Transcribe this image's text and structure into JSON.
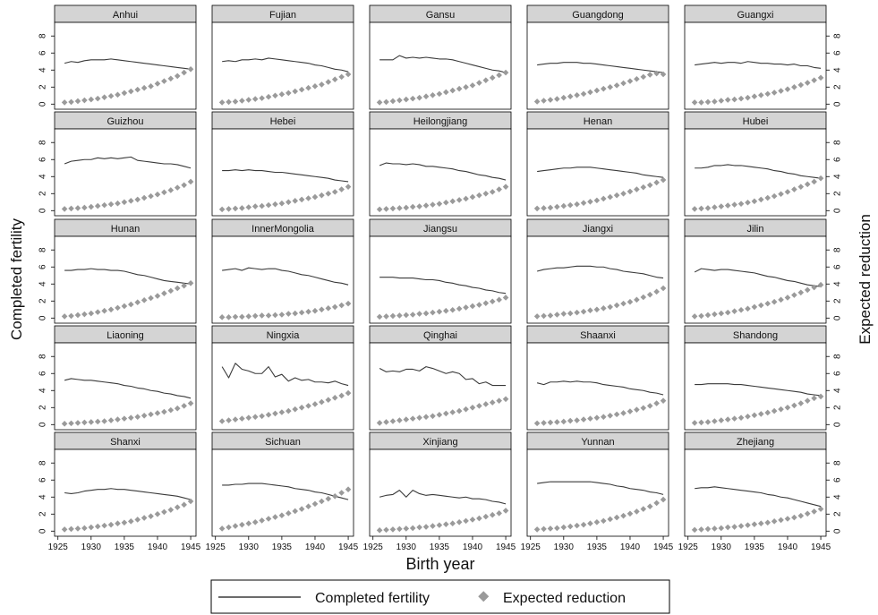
{
  "figure": {
    "xlabel": "Birth year",
    "ylabel_left": "Completed fertility",
    "ylabel_right": "Expected reduction",
    "legend": {
      "completed": "Completed fertility",
      "expected": "Expected reduction"
    },
    "colors": {
      "completed": "#3a3a3a",
      "expected": "#9a9a9a",
      "header_bg": "#d4d4d4",
      "frame": "#000000"
    }
  },
  "chart_data": {
    "type": "line",
    "x": [
      1926,
      1927,
      1928,
      1929,
      1930,
      1931,
      1932,
      1933,
      1934,
      1935,
      1936,
      1937,
      1938,
      1939,
      1940,
      1941,
      1942,
      1943,
      1944,
      1945
    ],
    "xticks": [
      1925,
      1930,
      1935,
      1940,
      1945
    ],
    "xlim": [
      1924.5,
      1945.8
    ],
    "yticks": [
      0,
      2,
      4,
      6,
      8
    ],
    "ylim": [
      -0.6,
      9.6
    ],
    "xlabel": "Birth year",
    "ylabel_left": "Completed fertility",
    "ylabel_right": "Expected reduction",
    "grid": false,
    "legend_position": "bottom",
    "series_names": [
      "Completed fertility",
      "Expected reduction"
    ],
    "panels": [
      {
        "name": "Anhui",
        "completed": [
          4.8,
          5.0,
          4.9,
          5.1,
          5.2,
          5.2,
          5.2,
          5.3,
          5.2,
          5.1,
          5.0,
          4.9,
          4.8,
          4.7,
          4.6,
          4.5,
          4.4,
          4.3,
          4.2,
          4.1
        ],
        "expected": [
          0.2,
          0.25,
          0.35,
          0.45,
          0.55,
          0.65,
          0.8,
          0.95,
          1.1,
          1.3,
          1.5,
          1.7,
          1.9,
          2.1,
          2.4,
          2.7,
          3.0,
          3.3,
          3.7,
          4.1
        ]
      },
      {
        "name": "Fujian",
        "completed": [
          5.0,
          5.1,
          5.0,
          5.2,
          5.2,
          5.3,
          5.2,
          5.4,
          5.3,
          5.2,
          5.1,
          5.0,
          4.9,
          4.8,
          4.6,
          4.5,
          4.3,
          4.1,
          4.0,
          3.8
        ],
        "expected": [
          0.2,
          0.25,
          0.3,
          0.4,
          0.5,
          0.6,
          0.7,
          0.85,
          1.0,
          1.15,
          1.3,
          1.5,
          1.7,
          1.9,
          2.1,
          2.3,
          2.6,
          2.9,
          3.2,
          3.5
        ]
      },
      {
        "name": "Gansu",
        "completed": [
          5.2,
          5.2,
          5.2,
          5.7,
          5.4,
          5.5,
          5.4,
          5.5,
          5.4,
          5.3,
          5.3,
          5.2,
          5.0,
          4.8,
          4.6,
          4.4,
          4.2,
          4.0,
          3.9,
          3.7
        ],
        "expected": [
          0.2,
          0.25,
          0.35,
          0.45,
          0.55,
          0.65,
          0.75,
          0.9,
          1.05,
          1.2,
          1.4,
          1.6,
          1.8,
          2.0,
          2.2,
          2.5,
          2.8,
          3.1,
          3.4,
          3.7
        ]
      },
      {
        "name": "Guangdong",
        "completed": [
          4.6,
          4.7,
          4.8,
          4.8,
          4.9,
          4.9,
          4.9,
          4.8,
          4.8,
          4.7,
          4.6,
          4.5,
          4.4,
          4.3,
          4.2,
          4.1,
          4.0,
          3.9,
          3.8,
          3.7
        ],
        "expected": [
          0.3,
          0.4,
          0.5,
          0.6,
          0.75,
          0.9,
          1.05,
          1.2,
          1.4,
          1.6,
          1.8,
          2.0,
          2.2,
          2.45,
          2.7,
          2.95,
          3.2,
          3.45,
          3.6,
          3.5
        ]
      },
      {
        "name": "Guangxi",
        "completed": [
          4.6,
          4.7,
          4.8,
          4.9,
          4.8,
          4.9,
          4.9,
          4.8,
          5.0,
          4.9,
          4.8,
          4.8,
          4.7,
          4.7,
          4.6,
          4.7,
          4.5,
          4.5,
          4.3,
          4.2
        ],
        "expected": [
          0.2,
          0.2,
          0.25,
          0.3,
          0.4,
          0.5,
          0.55,
          0.65,
          0.75,
          0.9,
          1.05,
          1.2,
          1.35,
          1.55,
          1.75,
          2.0,
          2.25,
          2.5,
          2.8,
          3.1
        ]
      },
      {
        "name": "Guizhou",
        "completed": [
          5.5,
          5.8,
          5.9,
          6.0,
          6.0,
          6.2,
          6.1,
          6.2,
          6.1,
          6.2,
          6.3,
          5.9,
          5.8,
          5.7,
          5.6,
          5.5,
          5.5,
          5.4,
          5.2,
          5.0
        ],
        "expected": [
          0.2,
          0.25,
          0.3,
          0.35,
          0.45,
          0.55,
          0.65,
          0.75,
          0.85,
          1.0,
          1.15,
          1.3,
          1.5,
          1.7,
          1.9,
          2.15,
          2.4,
          2.7,
          3.0,
          3.4
        ]
      },
      {
        "name": "Hebei",
        "completed": [
          4.7,
          4.7,
          4.8,
          4.7,
          4.8,
          4.7,
          4.7,
          4.6,
          4.5,
          4.5,
          4.4,
          4.3,
          4.2,
          4.1,
          4.0,
          3.9,
          3.8,
          3.6,
          3.5,
          3.4
        ],
        "expected": [
          0.15,
          0.2,
          0.25,
          0.3,
          0.4,
          0.5,
          0.55,
          0.65,
          0.75,
          0.85,
          1.0,
          1.15,
          1.3,
          1.45,
          1.6,
          1.8,
          2.0,
          2.2,
          2.5,
          2.8
        ]
      },
      {
        "name": "Heilongjiang",
        "completed": [
          5.3,
          5.6,
          5.5,
          5.5,
          5.4,
          5.5,
          5.4,
          5.2,
          5.2,
          5.1,
          5.0,
          4.9,
          4.7,
          4.6,
          4.4,
          4.2,
          4.1,
          3.9,
          3.8,
          3.6
        ],
        "expected": [
          0.15,
          0.2,
          0.25,
          0.3,
          0.35,
          0.45,
          0.5,
          0.6,
          0.7,
          0.8,
          0.95,
          1.1,
          1.25,
          1.4,
          1.6,
          1.8,
          2.0,
          2.2,
          2.5,
          2.8
        ]
      },
      {
        "name": "Henan",
        "completed": [
          4.6,
          4.7,
          4.8,
          4.9,
          5.0,
          5.0,
          5.1,
          5.1,
          5.1,
          5.0,
          4.9,
          4.8,
          4.7,
          4.6,
          4.5,
          4.4,
          4.2,
          4.1,
          4.0,
          3.9
        ],
        "expected": [
          0.25,
          0.3,
          0.35,
          0.45,
          0.55,
          0.65,
          0.75,
          0.9,
          1.05,
          1.2,
          1.4,
          1.6,
          1.8,
          2.0,
          2.25,
          2.5,
          2.75,
          3.0,
          3.3,
          3.6
        ]
      },
      {
        "name": "Hubei",
        "completed": [
          5.0,
          5.0,
          5.1,
          5.3,
          5.3,
          5.4,
          5.3,
          5.3,
          5.2,
          5.1,
          5.0,
          4.9,
          4.7,
          4.6,
          4.4,
          4.3,
          4.1,
          4.0,
          3.9,
          3.8
        ],
        "expected": [
          0.2,
          0.25,
          0.3,
          0.4,
          0.5,
          0.6,
          0.7,
          0.8,
          0.95,
          1.1,
          1.3,
          1.5,
          1.7,
          1.95,
          2.2,
          2.5,
          2.8,
          3.1,
          3.4,
          3.8
        ]
      },
      {
        "name": "Hunan",
        "completed": [
          5.6,
          5.6,
          5.7,
          5.7,
          5.8,
          5.7,
          5.7,
          5.6,
          5.6,
          5.5,
          5.3,
          5.1,
          5.0,
          4.8,
          4.6,
          4.4,
          4.3,
          4.2,
          4.1,
          4.0
        ],
        "expected": [
          0.2,
          0.25,
          0.35,
          0.45,
          0.55,
          0.7,
          0.85,
          1.0,
          1.2,
          1.4,
          1.6,
          1.85,
          2.1,
          2.35,
          2.6,
          2.9,
          3.2,
          3.5,
          3.8,
          4.1
        ]
      },
      {
        "name": "InnerMongolia",
        "completed": [
          5.6,
          5.7,
          5.8,
          5.6,
          5.9,
          5.8,
          5.7,
          5.8,
          5.8,
          5.6,
          5.5,
          5.3,
          5.1,
          5.0,
          4.8,
          4.6,
          4.4,
          4.2,
          4.1,
          3.9
        ],
        "expected": [
          0.1,
          0.1,
          0.15,
          0.15,
          0.2,
          0.25,
          0.3,
          0.3,
          0.35,
          0.4,
          0.5,
          0.55,
          0.65,
          0.75,
          0.85,
          1.0,
          1.15,
          1.3,
          1.5,
          1.7
        ]
      },
      {
        "name": "Jiangsu",
        "completed": [
          4.8,
          4.8,
          4.8,
          4.7,
          4.7,
          4.7,
          4.6,
          4.5,
          4.5,
          4.4,
          4.2,
          4.1,
          3.9,
          3.8,
          3.6,
          3.5,
          3.3,
          3.2,
          3.0,
          2.9
        ],
        "expected": [
          0.15,
          0.2,
          0.25,
          0.3,
          0.35,
          0.4,
          0.5,
          0.55,
          0.65,
          0.75,
          0.85,
          0.95,
          1.1,
          1.25,
          1.4,
          1.55,
          1.75,
          1.95,
          2.15,
          2.4
        ]
      },
      {
        "name": "Jiangxi",
        "completed": [
          5.5,
          5.7,
          5.8,
          5.9,
          5.9,
          6.0,
          6.1,
          6.1,
          6.1,
          6.0,
          6.0,
          5.8,
          5.7,
          5.5,
          5.4,
          5.3,
          5.2,
          5.0,
          4.8,
          4.7
        ],
        "expected": [
          0.2,
          0.25,
          0.3,
          0.4,
          0.5,
          0.55,
          0.65,
          0.75,
          0.9,
          1.0,
          1.15,
          1.3,
          1.5,
          1.7,
          1.9,
          2.15,
          2.45,
          2.75,
          3.1,
          3.5
        ]
      },
      {
        "name": "Jilin",
        "completed": [
          5.4,
          5.8,
          5.7,
          5.6,
          5.7,
          5.7,
          5.6,
          5.5,
          5.4,
          5.3,
          5.1,
          4.9,
          4.8,
          4.6,
          4.4,
          4.3,
          4.1,
          3.9,
          3.8,
          3.7
        ],
        "expected": [
          0.2,
          0.25,
          0.35,
          0.45,
          0.55,
          0.65,
          0.8,
          0.95,
          1.1,
          1.3,
          1.5,
          1.7,
          1.9,
          2.15,
          2.4,
          2.7,
          3.0,
          3.3,
          3.6,
          3.9
        ]
      },
      {
        "name": "Liaoning",
        "completed": [
          5.2,
          5.4,
          5.3,
          5.2,
          5.2,
          5.1,
          5.0,
          4.9,
          4.8,
          4.6,
          4.5,
          4.3,
          4.2,
          4.0,
          3.9,
          3.7,
          3.6,
          3.4,
          3.3,
          3.1
        ],
        "expected": [
          0.1,
          0.15,
          0.2,
          0.25,
          0.3,
          0.35,
          0.4,
          0.5,
          0.6,
          0.7,
          0.8,
          0.9,
          1.05,
          1.2,
          1.35,
          1.5,
          1.7,
          1.9,
          2.2,
          2.5
        ]
      },
      {
        "name": "Ningxia",
        "completed": [
          6.8,
          5.5,
          7.2,
          6.5,
          6.3,
          6.0,
          6.0,
          6.8,
          5.6,
          5.9,
          5.1,
          5.5,
          5.2,
          5.3,
          5.0,
          5.0,
          4.9,
          5.1,
          4.8,
          4.6
        ],
        "expected": [
          0.4,
          0.5,
          0.6,
          0.7,
          0.8,
          0.9,
          1.0,
          1.15,
          1.3,
          1.45,
          1.6,
          1.8,
          2.0,
          2.2,
          2.4,
          2.65,
          2.9,
          3.15,
          3.4,
          3.7
        ]
      },
      {
        "name": "Qinghai",
        "completed": [
          6.6,
          6.2,
          6.3,
          6.2,
          6.5,
          6.5,
          6.3,
          6.8,
          6.6,
          6.3,
          6.0,
          6.2,
          6.0,
          5.3,
          5.4,
          4.8,
          5.0,
          4.6,
          4.6,
          4.6
        ],
        "expected": [
          0.2,
          0.3,
          0.4,
          0.5,
          0.6,
          0.7,
          0.8,
          0.9,
          1.0,
          1.15,
          1.3,
          1.45,
          1.6,
          1.8,
          2.0,
          2.2,
          2.4,
          2.6,
          2.8,
          3.0
        ]
      },
      {
        "name": "Shaanxi",
        "completed": [
          4.9,
          4.7,
          5.0,
          5.0,
          5.1,
          5.0,
          5.1,
          5.0,
          5.0,
          4.9,
          4.7,
          4.6,
          4.5,
          4.4,
          4.2,
          4.1,
          4.0,
          3.8,
          3.7,
          3.5
        ],
        "expected": [
          0.15,
          0.2,
          0.25,
          0.3,
          0.35,
          0.45,
          0.5,
          0.6,
          0.7,
          0.8,
          0.9,
          1.05,
          1.2,
          1.35,
          1.55,
          1.75,
          1.95,
          2.2,
          2.5,
          2.8
        ]
      },
      {
        "name": "Shandong",
        "completed": [
          4.7,
          4.7,
          4.8,
          4.8,
          4.8,
          4.8,
          4.7,
          4.7,
          4.6,
          4.5,
          4.4,
          4.3,
          4.2,
          4.1,
          4.0,
          3.9,
          3.8,
          3.6,
          3.5,
          3.4
        ],
        "expected": [
          0.2,
          0.25,
          0.3,
          0.4,
          0.5,
          0.6,
          0.7,
          0.8,
          0.95,
          1.1,
          1.25,
          1.4,
          1.6,
          1.8,
          2.0,
          2.25,
          2.5,
          2.8,
          3.1,
          3.3
        ]
      },
      {
        "name": "Shanxi",
        "completed": [
          4.5,
          4.4,
          4.5,
          4.7,
          4.8,
          4.9,
          4.9,
          5.0,
          4.9,
          4.9,
          4.8,
          4.7,
          4.6,
          4.5,
          4.4,
          4.3,
          4.2,
          4.1,
          3.9,
          3.7
        ],
        "expected": [
          0.2,
          0.25,
          0.3,
          0.35,
          0.45,
          0.55,
          0.65,
          0.75,
          0.9,
          1.0,
          1.15,
          1.35,
          1.55,
          1.75,
          2.0,
          2.25,
          2.5,
          2.8,
          3.1,
          3.5
        ]
      },
      {
        "name": "Sichuan",
        "completed": [
          5.4,
          5.4,
          5.5,
          5.5,
          5.6,
          5.6,
          5.6,
          5.5,
          5.4,
          5.3,
          5.2,
          5.0,
          4.9,
          4.8,
          4.6,
          4.5,
          4.3,
          4.1,
          3.9,
          3.7
        ],
        "expected": [
          0.3,
          0.45,
          0.6,
          0.75,
          0.9,
          1.05,
          1.25,
          1.45,
          1.65,
          1.85,
          2.1,
          2.35,
          2.6,
          2.9,
          3.2,
          3.5,
          3.8,
          4.1,
          4.5,
          4.9
        ]
      },
      {
        "name": "Xinjiang",
        "completed": [
          4.0,
          4.2,
          4.3,
          4.8,
          4.0,
          4.8,
          4.4,
          4.2,
          4.3,
          4.2,
          4.1,
          4.0,
          3.9,
          4.0,
          3.8,
          3.8,
          3.7,
          3.5,
          3.4,
          3.2
        ],
        "expected": [
          0.1,
          0.15,
          0.2,
          0.25,
          0.3,
          0.35,
          0.45,
          0.5,
          0.6,
          0.7,
          0.8,
          0.9,
          1.05,
          1.2,
          1.35,
          1.5,
          1.7,
          1.9,
          2.1,
          2.4
        ]
      },
      {
        "name": "Yunnan",
        "completed": [
          5.6,
          5.7,
          5.8,
          5.8,
          5.8,
          5.8,
          5.8,
          5.8,
          5.8,
          5.7,
          5.6,
          5.5,
          5.3,
          5.2,
          5.0,
          4.9,
          4.8,
          4.6,
          4.5,
          4.3
        ],
        "expected": [
          0.2,
          0.25,
          0.3,
          0.35,
          0.45,
          0.55,
          0.65,
          0.75,
          0.9,
          1.05,
          1.2,
          1.4,
          1.6,
          1.8,
          2.05,
          2.3,
          2.6,
          2.9,
          3.3,
          3.7
        ]
      },
      {
        "name": "Zhejiang",
        "completed": [
          5.0,
          5.1,
          5.1,
          5.2,
          5.1,
          5.0,
          4.9,
          4.8,
          4.7,
          4.6,
          4.5,
          4.3,
          4.2,
          4.0,
          3.9,
          3.7,
          3.5,
          3.3,
          3.1,
          2.9
        ],
        "expected": [
          0.15,
          0.2,
          0.25,
          0.3,
          0.35,
          0.45,
          0.5,
          0.6,
          0.7,
          0.8,
          0.9,
          1.0,
          1.15,
          1.3,
          1.45,
          1.6,
          1.8,
          2.05,
          2.3,
          2.6
        ]
      }
    ]
  }
}
